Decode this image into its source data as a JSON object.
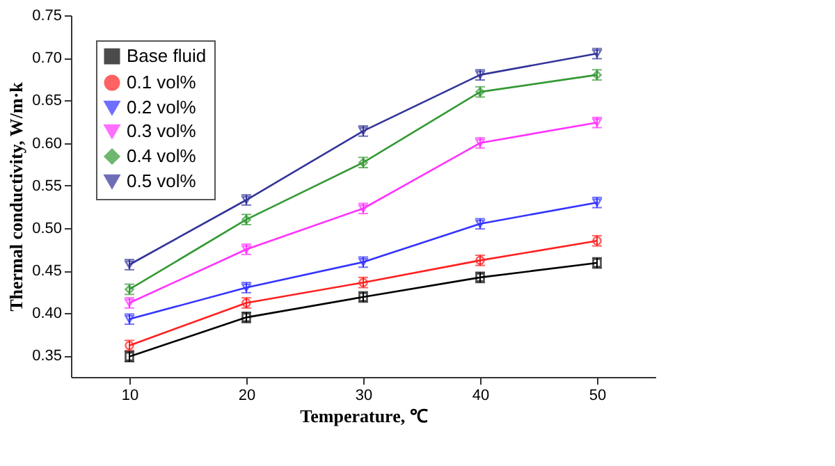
{
  "chart_data": {
    "type": "line",
    "xlabel": "Temperature, ℃",
    "ylabel": "Thermal conductivity, W/m·k",
    "x": [
      10,
      20,
      30,
      40,
      50
    ],
    "xlim": [
      5,
      55
    ],
    "xticks": [
      10,
      20,
      30,
      40,
      50
    ],
    "ylim": [
      0.325,
      0.75
    ],
    "yticks": [
      0.35,
      {
        "value": 0.4,
        "label": "0.40"
      },
      0.45,
      {
        "value": 0.5,
        "label": "0.50"
      },
      0.55,
      {
        "value": 0.6,
        "label": "0.60"
      },
      0.65,
      {
        "value": 0.7,
        "label": "0.70"
      },
      0.75
    ],
    "grid": false,
    "legend": "top left",
    "line_style": "solid",
    "series": [
      {
        "name": "Base fluid",
        "color": "#000000",
        "marker": "square",
        "values": [
          0.349,
          0.395,
          0.419,
          0.442,
          0.459
        ],
        "errors": [
          0.006,
          0.006,
          0.006,
          0.006,
          0.006
        ]
      },
      {
        "name": "0.1 vol%",
        "color": "#ff2020",
        "marker": "circle",
        "values": [
          0.362,
          0.412,
          0.436,
          0.462,
          0.485
        ],
        "errors": [
          0.006,
          0.006,
          0.006,
          0.006,
          0.006
        ]
      },
      {
        "name": "0.2 vol%",
        "color": "#3333ff",
        "marker": "triangle",
        "values": [
          0.393,
          0.43,
          0.46,
          0.505,
          0.53
        ],
        "errors": [
          0.006,
          0.006,
          0.006,
          0.006,
          0.006
        ]
      },
      {
        "name": "0.3 vol%",
        "color": "#ff33ff",
        "marker": "triangle",
        "values": [
          0.412,
          0.475,
          0.523,
          0.6,
          0.624
        ],
        "errors": [
          0.006,
          0.006,
          0.006,
          0.006,
          0.006
        ]
      },
      {
        "name": "0.4 vol%",
        "color": "#339933",
        "marker": "diamond",
        "values": [
          0.428,
          0.51,
          0.577,
          0.66,
          0.68
        ],
        "errors": [
          0.006,
          0.006,
          0.006,
          0.006,
          0.006
        ]
      },
      {
        "name": "0.5 vol%",
        "color": "#333399",
        "marker": "triangle",
        "values": [
          0.457,
          0.533,
          0.614,
          0.68,
          0.705
        ],
        "errors": [
          0.006,
          0.006,
          0.006,
          0.006,
          0.006
        ]
      }
    ]
  }
}
